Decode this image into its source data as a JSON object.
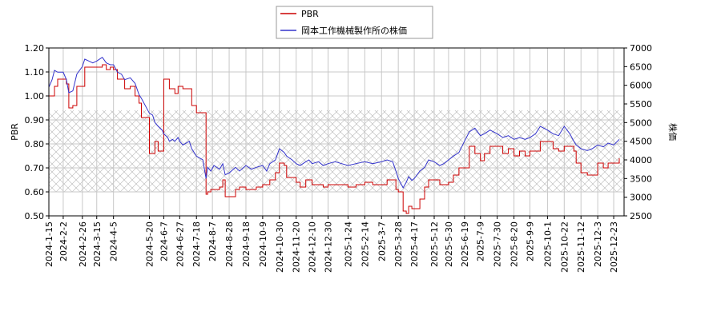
{
  "chart_data": {
    "type": "line",
    "title": "",
    "xlabel": "",
    "ylabel_left": "PBR",
    "ylabel_right": "株価",
    "grid": true,
    "legend_position": "top-center",
    "hatched_band_pbr": [
      0.6,
      0.94
    ],
    "ylim_left": [
      0.5,
      1.2
    ],
    "ylim_right": [
      2500,
      7000
    ],
    "xlim": [
      "2024-01-15",
      "2026-01-05"
    ],
    "left_ticks": [
      "0.50",
      "0.60",
      "0.70",
      "0.80",
      "0.90",
      "1.00",
      "1.10",
      "1.20"
    ],
    "right_ticks": [
      "2500",
      "3000",
      "3500",
      "4000",
      "4500",
      "5000",
      "5500",
      "6000",
      "6500",
      "7000"
    ],
    "x_tick_labels": [
      "2024-1-15",
      "2024-2-2",
      "2024-2-26",
      "2024-3-15",
      "2024-4-5",
      "2024-5-20",
      "2024-6-7",
      "2024-6-27",
      "2024-7-18",
      "2024-8-7",
      "2024-8-28",
      "2024-9-18",
      "2024-10-9",
      "2024-10-30",
      "2024-11-20",
      "2024-12-10",
      "2024-12-30",
      "2025-1-24",
      "2025-2-14",
      "2025-3-7",
      "2025-3-28",
      "2025-4-17",
      "2025-5-12",
      "2025-5-30",
      "2025-6-19",
      "2025-7-9",
      "2025-7-30",
      "2025-8-20",
      "2025-9-9",
      "2025-10-1",
      "2025-10-22",
      "2025-11-12",
      "2025-12-3",
      "2025-12-23"
    ],
    "series": [
      {
        "name": "PBR",
        "color": "#cc0000",
        "axis": "left",
        "points": [
          [
            "2024-01-15",
            1.0
          ],
          [
            "2024-01-19",
            1.0
          ],
          [
            "2024-01-22",
            1.04
          ],
          [
            "2024-01-26",
            1.07
          ],
          [
            "2024-02-02",
            1.07
          ],
          [
            "2024-02-06",
            1.05
          ],
          [
            "2024-02-09",
            0.95
          ],
          [
            "2024-02-14",
            0.96
          ],
          [
            "2024-02-19",
            1.04
          ],
          [
            "2024-02-26",
            1.04
          ],
          [
            "2024-02-29",
            1.12
          ],
          [
            "2024-03-05",
            1.12
          ],
          [
            "2024-03-10",
            1.12
          ],
          [
            "2024-03-15",
            1.12
          ],
          [
            "2024-03-22",
            1.13
          ],
          [
            "2024-03-27",
            1.11
          ],
          [
            "2024-04-01",
            1.12
          ],
          [
            "2024-04-05",
            1.11
          ],
          [
            "2024-04-10",
            1.07
          ],
          [
            "2024-04-15",
            1.07
          ],
          [
            "2024-04-19",
            1.03
          ],
          [
            "2024-04-26",
            1.04
          ],
          [
            "2024-05-02",
            1.0
          ],
          [
            "2024-05-07",
            0.97
          ],
          [
            "2024-05-10",
            0.91
          ],
          [
            "2024-05-15",
            0.91
          ],
          [
            "2024-05-20",
            0.76
          ],
          [
            "2024-05-24",
            0.76
          ],
          [
            "2024-05-27",
            0.81
          ],
          [
            "2024-05-31",
            0.77
          ],
          [
            "2024-06-05",
            0.77
          ],
          [
            "2024-06-07",
            1.07
          ],
          [
            "2024-06-12",
            1.07
          ],
          [
            "2024-06-14",
            1.03
          ],
          [
            "2024-06-18",
            1.03
          ],
          [
            "2024-06-21",
            1.01
          ],
          [
            "2024-06-25",
            1.04
          ],
          [
            "2024-06-27",
            1.04
          ],
          [
            "2024-07-01",
            1.03
          ],
          [
            "2024-07-09",
            1.03
          ],
          [
            "2024-07-12",
            0.96
          ],
          [
            "2024-07-18",
            0.93
          ],
          [
            "2024-07-26",
            0.93
          ],
          [
            "2024-07-30",
            0.59
          ],
          [
            "2024-08-01",
            0.6
          ],
          [
            "2024-08-05",
            0.61
          ],
          [
            "2024-08-09",
            0.61
          ],
          [
            "2024-08-16",
            0.62
          ],
          [
            "2024-08-20",
            0.65
          ],
          [
            "2024-08-23",
            0.58
          ],
          [
            "2024-08-28",
            0.58
          ],
          [
            "2024-09-05",
            0.61
          ],
          [
            "2024-09-10",
            0.62
          ],
          [
            "2024-09-18",
            0.61
          ],
          [
            "2024-09-25",
            0.61
          ],
          [
            "2024-10-01",
            0.62
          ],
          [
            "2024-10-09",
            0.63
          ],
          [
            "2024-10-14",
            0.63
          ],
          [
            "2024-10-18",
            0.65
          ],
          [
            "2024-10-25",
            0.68
          ],
          [
            "2024-10-30",
            0.72
          ],
          [
            "2024-11-05",
            0.71
          ],
          [
            "2024-11-08",
            0.66
          ],
          [
            "2024-11-15",
            0.66
          ],
          [
            "2024-11-20",
            0.64
          ],
          [
            "2024-11-25",
            0.62
          ],
          [
            "2024-12-02",
            0.65
          ],
          [
            "2024-12-06",
            0.65
          ],
          [
            "2024-12-10",
            0.63
          ],
          [
            "2024-12-18",
            0.63
          ],
          [
            "2024-12-24",
            0.62
          ],
          [
            "2024-12-30",
            0.63
          ],
          [
            "2025-01-08",
            0.63
          ],
          [
            "2025-01-16",
            0.63
          ],
          [
            "2025-01-24",
            0.62
          ],
          [
            "2025-02-03",
            0.63
          ],
          [
            "2025-02-14",
            0.64
          ],
          [
            "2025-02-24",
            0.63
          ],
          [
            "2025-03-07",
            0.63
          ],
          [
            "2025-03-14",
            0.65
          ],
          [
            "2025-03-21",
            0.65
          ],
          [
            "2025-03-25",
            0.61
          ],
          [
            "2025-03-28",
            0.6
          ],
          [
            "2025-04-03",
            0.52
          ],
          [
            "2025-04-07",
            0.51
          ],
          [
            "2025-04-10",
            0.54
          ],
          [
            "2025-04-14",
            0.53
          ],
          [
            "2025-04-17",
            0.53
          ],
          [
            "2025-04-24",
            0.57
          ],
          [
            "2025-04-30",
            0.62
          ],
          [
            "2025-05-05",
            0.65
          ],
          [
            "2025-05-12",
            0.65
          ],
          [
            "2025-05-19",
            0.63
          ],
          [
            "2025-05-24",
            0.63
          ],
          [
            "2025-05-30",
            0.64
          ],
          [
            "2025-06-05",
            0.67
          ],
          [
            "2025-06-12",
            0.7
          ],
          [
            "2025-06-19",
            0.7
          ],
          [
            "2025-06-25",
            0.79
          ],
          [
            "2025-07-02",
            0.76
          ],
          [
            "2025-07-09",
            0.73
          ],
          [
            "2025-07-14",
            0.76
          ],
          [
            "2025-07-21",
            0.79
          ],
          [
            "2025-07-30",
            0.79
          ],
          [
            "2025-08-06",
            0.76
          ],
          [
            "2025-08-13",
            0.78
          ],
          [
            "2025-08-20",
            0.75
          ],
          [
            "2025-08-27",
            0.77
          ],
          [
            "2025-09-03",
            0.75
          ],
          [
            "2025-09-09",
            0.77
          ],
          [
            "2025-09-16",
            0.77
          ],
          [
            "2025-09-22",
            0.81
          ],
          [
            "2025-10-01",
            0.81
          ],
          [
            "2025-10-08",
            0.78
          ],
          [
            "2025-10-15",
            0.77
          ],
          [
            "2025-10-22",
            0.79
          ],
          [
            "2025-10-29",
            0.79
          ],
          [
            "2025-11-03",
            0.77
          ],
          [
            "2025-11-06",
            0.72
          ],
          [
            "2025-11-12",
            0.68
          ],
          [
            "2025-11-20",
            0.67
          ],
          [
            "2025-11-26",
            0.67
          ],
          [
            "2025-12-03",
            0.72
          ],
          [
            "2025-12-10",
            0.7
          ],
          [
            "2025-12-16",
            0.72
          ],
          [
            "2025-12-23",
            0.72
          ],
          [
            "2025-12-30",
            0.74
          ]
        ]
      },
      {
        "name": "岡本工作機械製作所の株価",
        "color": "#3333cc",
        "axis": "right",
        "points": [
          [
            "2024-01-15",
            5950
          ],
          [
            "2024-01-19",
            6150
          ],
          [
            "2024-01-22",
            6400
          ],
          [
            "2024-01-26",
            6350
          ],
          [
            "2024-02-02",
            6350
          ],
          [
            "2024-02-06",
            6150
          ],
          [
            "2024-02-09",
            5800
          ],
          [
            "2024-02-14",
            5850
          ],
          [
            "2024-02-19",
            6300
          ],
          [
            "2024-02-26",
            6500
          ],
          [
            "2024-02-29",
            6700
          ],
          [
            "2024-03-05",
            6650
          ],
          [
            "2024-03-10",
            6600
          ],
          [
            "2024-03-15",
            6650
          ],
          [
            "2024-03-22",
            6750
          ],
          [
            "2024-03-27",
            6600
          ],
          [
            "2024-04-01",
            6550
          ],
          [
            "2024-04-05",
            6550
          ],
          [
            "2024-04-10",
            6350
          ],
          [
            "2024-04-15",
            6300
          ],
          [
            "2024-04-19",
            6150
          ],
          [
            "2024-04-26",
            6200
          ],
          [
            "2024-05-02",
            6050
          ],
          [
            "2024-05-07",
            5750
          ],
          [
            "2024-05-10",
            5650
          ],
          [
            "2024-05-15",
            5450
          ],
          [
            "2024-05-20",
            5250
          ],
          [
            "2024-05-24",
            5200
          ],
          [
            "2024-05-27",
            5000
          ],
          [
            "2024-05-31",
            4900
          ],
          [
            "2024-06-05",
            4800
          ],
          [
            "2024-06-07",
            4700
          ],
          [
            "2024-06-12",
            4600
          ],
          [
            "2024-06-14",
            4500
          ],
          [
            "2024-06-18",
            4550
          ],
          [
            "2024-06-21",
            4500
          ],
          [
            "2024-06-25",
            4600
          ],
          [
            "2024-06-27",
            4500
          ],
          [
            "2024-07-01",
            4400
          ],
          [
            "2024-07-09",
            4500
          ],
          [
            "2024-07-12",
            4300
          ],
          [
            "2024-07-18",
            4100
          ],
          [
            "2024-07-26",
            4000
          ],
          [
            "2024-07-30",
            3500
          ],
          [
            "2024-08-01",
            3800
          ],
          [
            "2024-08-05",
            3700
          ],
          [
            "2024-08-09",
            3850
          ],
          [
            "2024-08-16",
            3750
          ],
          [
            "2024-08-20",
            3900
          ],
          [
            "2024-08-23",
            3600
          ],
          [
            "2024-08-28",
            3650
          ],
          [
            "2024-09-05",
            3800
          ],
          [
            "2024-09-10",
            3700
          ],
          [
            "2024-09-18",
            3850
          ],
          [
            "2024-09-25",
            3750
          ],
          [
            "2024-10-01",
            3800
          ],
          [
            "2024-10-09",
            3850
          ],
          [
            "2024-10-14",
            3700
          ],
          [
            "2024-10-18",
            3900
          ],
          [
            "2024-10-25",
            4000
          ],
          [
            "2024-10-30",
            4300
          ],
          [
            "2024-11-05",
            4200
          ],
          [
            "2024-11-08",
            4100
          ],
          [
            "2024-11-15",
            4000
          ],
          [
            "2024-11-20",
            3900
          ],
          [
            "2024-11-25",
            3850
          ],
          [
            "2024-12-02",
            3950
          ],
          [
            "2024-12-06",
            4000
          ],
          [
            "2024-12-10",
            3900
          ],
          [
            "2024-12-18",
            3950
          ],
          [
            "2024-12-24",
            3850
          ],
          [
            "2024-12-30",
            3900
          ],
          [
            "2025-01-08",
            3950
          ],
          [
            "2025-01-16",
            3900
          ],
          [
            "2025-01-24",
            3850
          ],
          [
            "2025-02-03",
            3900
          ],
          [
            "2025-02-14",
            3950
          ],
          [
            "2025-02-24",
            3900
          ],
          [
            "2025-03-07",
            3950
          ],
          [
            "2025-03-14",
            4000
          ],
          [
            "2025-03-21",
            3950
          ],
          [
            "2025-03-25",
            3700
          ],
          [
            "2025-03-28",
            3500
          ],
          [
            "2025-04-03",
            3250
          ],
          [
            "2025-04-07",
            3400
          ],
          [
            "2025-04-10",
            3550
          ],
          [
            "2025-04-14",
            3450
          ],
          [
            "2025-04-17",
            3500
          ],
          [
            "2025-04-24",
            3700
          ],
          [
            "2025-04-30",
            3800
          ],
          [
            "2025-05-05",
            4000
          ],
          [
            "2025-05-12",
            3950
          ],
          [
            "2025-05-19",
            3850
          ],
          [
            "2025-05-24",
            3900
          ],
          [
            "2025-05-30",
            4000
          ],
          [
            "2025-06-05",
            4100
          ],
          [
            "2025-06-12",
            4200
          ],
          [
            "2025-06-19",
            4500
          ],
          [
            "2025-06-25",
            4750
          ],
          [
            "2025-07-02",
            4850
          ],
          [
            "2025-07-09",
            4650
          ],
          [
            "2025-07-14",
            4700
          ],
          [
            "2025-07-21",
            4800
          ],
          [
            "2025-07-30",
            4700
          ],
          [
            "2025-08-06",
            4600
          ],
          [
            "2025-08-13",
            4650
          ],
          [
            "2025-08-20",
            4550
          ],
          [
            "2025-08-27",
            4600
          ],
          [
            "2025-09-03",
            4550
          ],
          [
            "2025-09-09",
            4600
          ],
          [
            "2025-09-16",
            4700
          ],
          [
            "2025-09-22",
            4900
          ],
          [
            "2025-10-01",
            4800
          ],
          [
            "2025-10-08",
            4700
          ],
          [
            "2025-10-15",
            4650
          ],
          [
            "2025-10-22",
            4900
          ],
          [
            "2025-10-29",
            4700
          ],
          [
            "2025-11-03",
            4500
          ],
          [
            "2025-11-06",
            4400
          ],
          [
            "2025-11-12",
            4300
          ],
          [
            "2025-11-20",
            4250
          ],
          [
            "2025-11-26",
            4300
          ],
          [
            "2025-12-03",
            4400
          ],
          [
            "2025-12-10",
            4350
          ],
          [
            "2025-12-16",
            4450
          ],
          [
            "2025-12-23",
            4400
          ],
          [
            "2025-12-30",
            4550
          ]
        ]
      }
    ]
  }
}
